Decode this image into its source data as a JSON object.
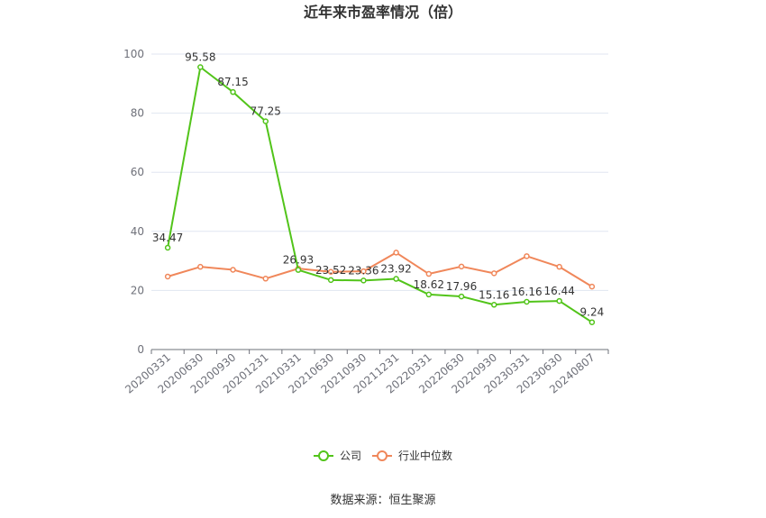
{
  "chart_data": {
    "type": "line",
    "title": "近年来市盈率情况（倍）",
    "categories": [
      "20200331",
      "20200630",
      "20200930",
      "20201231",
      "20210331",
      "20210630",
      "20210930",
      "20211231",
      "20220331",
      "20220630",
      "20220930",
      "20230331",
      "20230630",
      "20240807"
    ],
    "ylim": [
      0,
      100
    ],
    "yticks": [
      0,
      20,
      40,
      60,
      80,
      100
    ],
    "grid": true,
    "legend_position": "bottom",
    "series": [
      {
        "name": "公司",
        "color": "#52c41a",
        "values": [
          34.47,
          95.58,
          87.15,
          77.25,
          26.93,
          23.52,
          23.36,
          23.92,
          18.62,
          17.96,
          15.16,
          16.16,
          16.44,
          9.24
        ],
        "labels": [
          "34.47",
          "95.58",
          "87.15",
          "77.25",
          "26.93",
          "23.52",
          "23.36",
          "23.92",
          "18.62",
          "17.96",
          "15.16",
          "16.16",
          "16.44",
          "9.24"
        ]
      },
      {
        "name": "行业中位数",
        "color": "#f0875a",
        "values": [
          24.7,
          28.0,
          27.0,
          24.0,
          27.4,
          26.3,
          26.5,
          32.8,
          25.6,
          28.1,
          25.8,
          31.6,
          28.0,
          21.3
        ]
      }
    ]
  },
  "source": "数据来源：恒生聚源"
}
